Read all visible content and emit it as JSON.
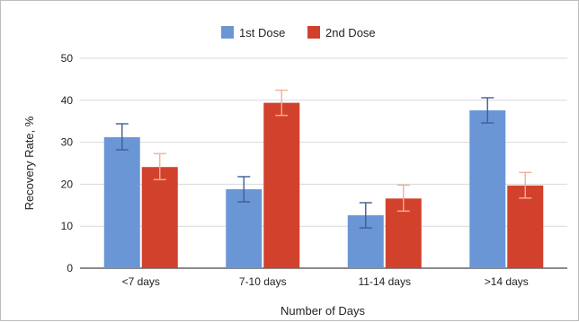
{
  "chart_data": {
    "type": "bar",
    "categories": [
      "<7 days",
      "7-10 days",
      "11-14 days",
      ">14 days"
    ],
    "series": [
      {
        "name": "1st Dose",
        "values": [
          31.2,
          18.8,
          12.6,
          37.6
        ],
        "error_low": [
          28.2,
          15.8,
          9.6,
          34.6
        ],
        "error_high": [
          34.4,
          21.8,
          15.6,
          40.6
        ],
        "color": "#6a96d6",
        "error_color": "#3f5f8f"
      },
      {
        "name": "2nd Dose",
        "values": [
          24.1,
          39.4,
          16.6,
          19.7
        ],
        "error_low": [
          21.1,
          36.4,
          13.6,
          16.7
        ],
        "error_high": [
          27.3,
          42.4,
          19.8,
          22.8
        ],
        "color": "#d2412c",
        "error_color": "#f0b09a"
      }
    ],
    "xlabel": "Number of Days",
    "ylabel": "Recovery Rate, %",
    "ylim": [
      0,
      50
    ],
    "yticks": [
      0,
      10,
      20,
      30,
      40,
      50
    ],
    "grid": true,
    "legend_position": "top-center"
  }
}
